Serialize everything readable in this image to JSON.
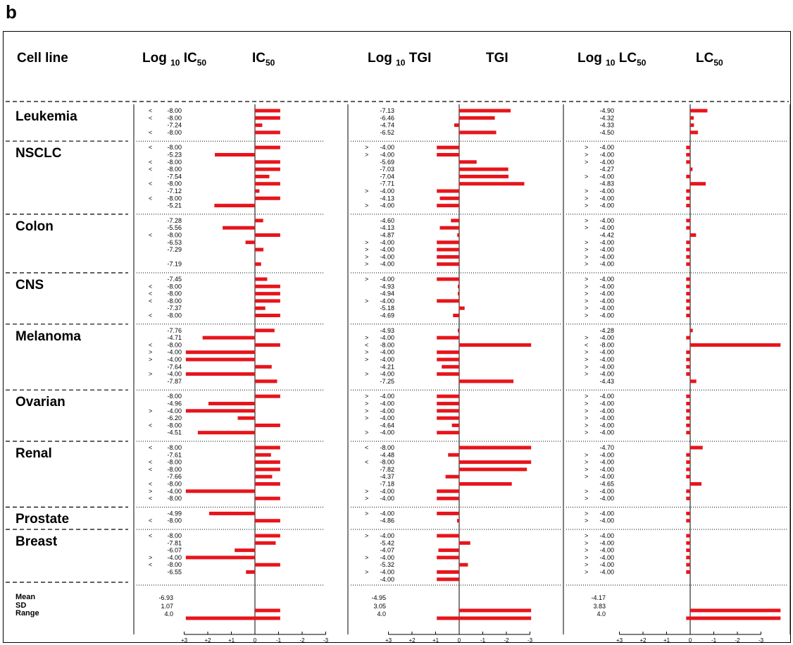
{
  "panel_label": "b",
  "headers": {
    "cell_line": "Cell line",
    "log_ic50": [
      "Log ",
      "10",
      " IC",
      "50"
    ],
    "ic50": [
      "IC",
      "50"
    ],
    "log_tgi": [
      "Log ",
      "10",
      " TGI"
    ],
    "tgi": "TGI",
    "log_lc50": [
      "Log ",
      "10",
      " LC",
      "50"
    ],
    "lc50": [
      "LC",
      "50"
    ]
  },
  "summary_labels": [
    "Mean",
    "SD",
    "Range"
  ],
  "colors": {
    "bar": "#e8141b",
    "axis": "#000000",
    "dash": "#000000"
  },
  "chart_data": {
    "type": "bar",
    "orientation": "horizontal",
    "axis_tick_labels": [
      "+3",
      "+2",
      "+1",
      "0",
      "-1",
      "-2",
      "-3"
    ],
    "axis_range": [
      3,
      -3
    ],
    "groups": [
      {
        "name": "Leukemia",
        "rows": [
          {
            "ic50": [
              "<",
              "-8.00"
            ],
            "tgi": [
              "",
              "-7.13"
            ],
            "lc50": [
              "",
              "-4.90"
            ]
          },
          {
            "ic50": [
              "<",
              "-8.00"
            ],
            "tgi": [
              "",
              "-6.46"
            ],
            "lc50": [
              "",
              "-4.32"
            ]
          },
          {
            "ic50": [
              "",
              "-7.24"
            ],
            "tgi": [
              "",
              "-4.74"
            ],
            "lc50": [
              "",
              "-4.33"
            ]
          },
          {
            "ic50": [
              "<",
              "-8.00"
            ],
            "tgi": [
              "",
              "-6.52"
            ],
            "lc50": [
              "",
              "-4.50"
            ]
          }
        ]
      },
      {
        "name": "NSCLC",
        "rows": [
          {
            "ic50": [
              "<",
              "-8.00"
            ],
            "tgi": [
              ">",
              "-4.00"
            ],
            "lc50": [
              ">",
              "-4.00"
            ]
          },
          {
            "ic50": [
              "",
              "-5.23"
            ],
            "tgi": [
              ">",
              "-4.00"
            ],
            "lc50": [
              ">",
              "-4.00"
            ]
          },
          {
            "ic50": [
              "<",
              "-8.00"
            ],
            "tgi": [
              "",
              "-5.69"
            ],
            "lc50": [
              ">",
              "-4.00"
            ]
          },
          {
            "ic50": [
              "<",
              "-8.00"
            ],
            "tgi": [
              "",
              "-7.03"
            ],
            "lc50": [
              "",
              "-4.27"
            ]
          },
          {
            "ic50": [
              "",
              "-7.54"
            ],
            "tgi": [
              "",
              "-7.04"
            ],
            "lc50": [
              ">",
              "-4.00"
            ]
          },
          {
            "ic50": [
              "<",
              "-8.00"
            ],
            "tgi": [
              "",
              "-7.71"
            ],
            "lc50": [
              "",
              "-4.83"
            ]
          },
          {
            "ic50": [
              "",
              "-7.12"
            ],
            "tgi": [
              ">",
              "-4.00"
            ],
            "lc50": [
              ">",
              "-4.00"
            ]
          },
          {
            "ic50": [
              "<",
              "-8.00"
            ],
            "tgi": [
              "",
              "-4.13"
            ],
            "lc50": [
              ">",
              "-4.00"
            ]
          },
          {
            "ic50": [
              "",
              "-5.21"
            ],
            "tgi": [
              ">",
              "-4.00"
            ],
            "lc50": [
              ">",
              "-4.00"
            ]
          }
        ]
      },
      {
        "name": "Colon",
        "rows": [
          {
            "ic50": [
              "",
              "-7.28"
            ],
            "tgi": [
              "",
              "-4.60"
            ],
            "lc50": [
              ">",
              "-4.00"
            ]
          },
          {
            "ic50": [
              "",
              "-5.56"
            ],
            "tgi": [
              "",
              "-4.13"
            ],
            "lc50": [
              ">",
              "-4.00"
            ]
          },
          {
            "ic50": [
              "<",
              "-8.00"
            ],
            "tgi": [
              "",
              "-4.87"
            ],
            "lc50": [
              "",
              "-4.42"
            ]
          },
          {
            "ic50": [
              "",
              "-6.53"
            ],
            "tgi": [
              ">",
              "-4.00"
            ],
            "lc50": [
              ">",
              "-4.00"
            ]
          },
          {
            "ic50": [
              "",
              "-7.29"
            ],
            "tgi": [
              ">",
              "-4.00"
            ],
            "lc50": [
              ">",
              "-4.00"
            ]
          },
          {
            "ic50": [
              "",
              ""
            ],
            "tgi": [
              ">",
              "-4.00"
            ],
            "lc50": [
              ">",
              "-4.00"
            ]
          },
          {
            "ic50": [
              "",
              "-7.19"
            ],
            "tgi": [
              ">",
              "-4.00"
            ],
            "lc50": [
              ">",
              "-4.00"
            ]
          }
        ]
      },
      {
        "name": "CNS",
        "rows": [
          {
            "ic50": [
              "",
              "-7.45"
            ],
            "tgi": [
              ">",
              "-4.00"
            ],
            "lc50": [
              ">",
              "-4.00"
            ]
          },
          {
            "ic50": [
              "<",
              "-8.00"
            ],
            "tgi": [
              "",
              "-4.93"
            ],
            "lc50": [
              ">",
              "-4.00"
            ]
          },
          {
            "ic50": [
              "<",
              "-8.00"
            ],
            "tgi": [
              "",
              "-4.94"
            ],
            "lc50": [
              ">",
              "-4.00"
            ]
          },
          {
            "ic50": [
              "<",
              "-8.00"
            ],
            "tgi": [
              ">",
              "-4.00"
            ],
            "lc50": [
              ">",
              "-4.00"
            ]
          },
          {
            "ic50": [
              "",
              "-7.37"
            ],
            "tgi": [
              "",
              "-5.18"
            ],
            "lc50": [
              ">",
              "-4.00"
            ]
          },
          {
            "ic50": [
              "<",
              "-8.00"
            ],
            "tgi": [
              "",
              "-4.69"
            ],
            "lc50": [
              ">",
              "-4.00"
            ]
          }
        ]
      },
      {
        "name": "Melanoma",
        "rows": [
          {
            "ic50": [
              "",
              "-7.76"
            ],
            "tgi": [
              "",
              "-4.93"
            ],
            "lc50": [
              "",
              "-4.28"
            ]
          },
          {
            "ic50": [
              "",
              "-4.71"
            ],
            "tgi": [
              ">",
              "-4.00"
            ],
            "lc50": [
              ">",
              "-4.00"
            ]
          },
          {
            "ic50": [
              "<",
              "-8.00"
            ],
            "tgi": [
              "<",
              "-8.00"
            ],
            "lc50": [
              "<",
              "-8.00"
            ]
          },
          {
            "ic50": [
              ">",
              "-4.00"
            ],
            "tgi": [
              ">",
              "-4.00"
            ],
            "lc50": [
              ">",
              "-4.00"
            ]
          },
          {
            "ic50": [
              ">",
              "-4.00"
            ],
            "tgi": [
              ">",
              "-4.00"
            ],
            "lc50": [
              ">",
              "-4.00"
            ]
          },
          {
            "ic50": [
              "",
              "-7.64"
            ],
            "tgi": [
              "",
              "-4.21"
            ],
            "lc50": [
              ">",
              "-4.00"
            ]
          },
          {
            "ic50": [
              ">",
              "-4.00"
            ],
            "tgi": [
              ">",
              "-4.00"
            ],
            "lc50": [
              ">",
              "-4.00"
            ]
          },
          {
            "ic50": [
              "",
              "-7.87"
            ],
            "tgi": [
              "",
              "-7.25"
            ],
            "lc50": [
              "",
              "-4.43"
            ]
          }
        ]
      },
      {
        "name": "Ovarian",
        "rows": [
          {
            "ic50": [
              "",
              "-8.00"
            ],
            "tgi": [
              ">",
              "-4.00"
            ],
            "lc50": [
              ">",
              "-4.00"
            ]
          },
          {
            "ic50": [
              "",
              "-4.96"
            ],
            "tgi": [
              ">",
              "-4.00"
            ],
            "lc50": [
              ">",
              "-4.00"
            ]
          },
          {
            "ic50": [
              ">",
              "-4.00"
            ],
            "tgi": [
              ">",
              "-4.00"
            ],
            "lc50": [
              ">",
              "-4.00"
            ]
          },
          {
            "ic50": [
              "",
              "-6.20"
            ],
            "tgi": [
              ">",
              "-4.00"
            ],
            "lc50": [
              ">",
              "-4.00"
            ]
          },
          {
            "ic50": [
              "<",
              "-8.00"
            ],
            "tgi": [
              "",
              "-4.64"
            ],
            "lc50": [
              ">",
              "-4.00"
            ]
          },
          {
            "ic50": [
              "",
              "-4.51"
            ],
            "tgi": [
              ">",
              "-4.00"
            ],
            "lc50": [
              ">",
              "-4.00"
            ]
          }
        ]
      },
      {
        "name": "Renal",
        "rows": [
          {
            "ic50": [
              "<",
              "-8.00"
            ],
            "tgi": [
              "<",
              "-8.00"
            ],
            "lc50": [
              "",
              "-4.70"
            ]
          },
          {
            "ic50": [
              "",
              "-7.61"
            ],
            "tgi": [
              "",
              "-4.48"
            ],
            "lc50": [
              ">",
              "-4.00"
            ]
          },
          {
            "ic50": [
              "<",
              "-8.00"
            ],
            "tgi": [
              "<",
              "-8.00"
            ],
            "lc50": [
              ">",
              "-4.00"
            ]
          },
          {
            "ic50": [
              "<",
              "-8.00"
            ],
            "tgi": [
              "",
              "-7.82"
            ],
            "lc50": [
              ">",
              "-4.00"
            ]
          },
          {
            "ic50": [
              "",
              "-7.66"
            ],
            "tgi": [
              "",
              "-4.37"
            ],
            "lc50": [
              ">",
              "-4.00"
            ]
          },
          {
            "ic50": [
              "<",
              "-8.00"
            ],
            "tgi": [
              "",
              "-7.18"
            ],
            "lc50": [
              "",
              "-4.65"
            ]
          },
          {
            "ic50": [
              ">",
              "-4.00"
            ],
            "tgi": [
              ">",
              "-4.00"
            ],
            "lc50": [
              ">",
              "-4.00"
            ]
          },
          {
            "ic50": [
              "<",
              "-8.00"
            ],
            "tgi": [
              ">",
              "-4.00"
            ],
            "lc50": [
              ">",
              "-4.00"
            ]
          }
        ]
      },
      {
        "name": "Prostate",
        "rows": [
          {
            "ic50": [
              "",
              "-4.99"
            ],
            "tgi": [
              ">",
              "-4.00"
            ],
            "lc50": [
              ">",
              "-4.00"
            ]
          },
          {
            "ic50": [
              "<",
              "-8.00"
            ],
            "tgi": [
              "",
              "-4.86"
            ],
            "lc50": [
              ">",
              "-4.00"
            ]
          }
        ]
      },
      {
        "name": "Breast",
        "rows": [
          {
            "ic50": [
              "<",
              "-8.00"
            ],
            "tgi": [
              ">",
              "-4.00"
            ],
            "lc50": [
              ">",
              "-4.00"
            ]
          },
          {
            "ic50": [
              "",
              "-7.81"
            ],
            "tgi": [
              "",
              "-5.42"
            ],
            "lc50": [
              ">",
              "-4.00"
            ]
          },
          {
            "ic50": [
              "",
              "-6.07"
            ],
            "tgi": [
              "",
              "-4.07"
            ],
            "lc50": [
              ">",
              "-4.00"
            ]
          },
          {
            "ic50": [
              ">",
              "-4.00"
            ],
            "tgi": [
              ">",
              "-4.00"
            ],
            "lc50": [
              ">",
              "-4.00"
            ]
          },
          {
            "ic50": [
              "<",
              "-8.00"
            ],
            "tgi": [
              "",
              "-5.32"
            ],
            "lc50": [
              ">",
              "-4.00"
            ]
          },
          {
            "ic50": [
              "",
              "-6.55"
            ],
            "tgi": [
              ">",
              "-4.00"
            ],
            "lc50": [
              ">",
              "-4.00"
            ]
          },
          {
            "ic50": [
              "",
              ""
            ],
            "tgi": [
              "",
              "-4.00"
            ],
            "lc50": [
              "",
              ""
            ]
          }
        ]
      }
    ],
    "summary": {
      "ic50": {
        "mean": "-6.93",
        "sd": "1.07",
        "range": "4.0"
      },
      "tgi": {
        "mean": "-4.95",
        "sd": "3.05",
        "range": "4.0"
      },
      "lc50": {
        "mean": "-4.17",
        "sd": "3.83",
        "range": "4.0"
      }
    }
  }
}
